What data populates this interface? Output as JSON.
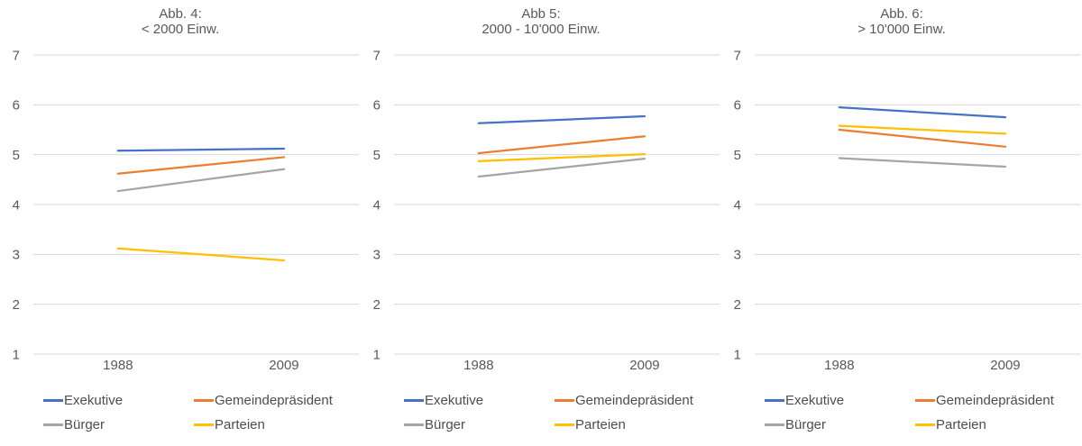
{
  "colors": {
    "grid": "#d9d9d9",
    "axis_text": "#595959",
    "title_text": "#595959",
    "legend_text": "#4d4d4d",
    "series_blue": "#4472c4",
    "series_orange": "#ed7d31",
    "series_gray": "#a5a5a5",
    "series_yellow": "#ffc000"
  },
  "chart_data": [
    {
      "type": "line",
      "title_line1": "Abb. 4:",
      "title_line2": "< 2000 Einw.",
      "categories": [
        "1988",
        "2009"
      ],
      "series": [
        {
          "name": "Exekutive",
          "color": "#4472c4",
          "values": [
            5.08,
            5.12
          ]
        },
        {
          "name": "Gemeindepräsident",
          "color": "#ed7d31",
          "values": [
            4.62,
            4.95
          ]
        },
        {
          "name": "Bürger",
          "color": "#a5a5a5",
          "values": [
            4.27,
            4.71
          ]
        },
        {
          "name": "Parteien",
          "color": "#ffc000",
          "values": [
            3.12,
            2.88
          ]
        }
      ],
      "ylim": [
        1,
        7
      ],
      "yticks": [
        1,
        2,
        3,
        4,
        5,
        6,
        7
      ],
      "grid": true,
      "legend_position": "bottom"
    },
    {
      "type": "line",
      "title_line1": "Abb 5:",
      "title_line2": "2000 - 10'000 Einw.",
      "categories": [
        "1988",
        "2009"
      ],
      "series": [
        {
          "name": "Exekutive",
          "color": "#4472c4",
          "values": [
            5.63,
            5.77
          ]
        },
        {
          "name": "Gemeindepräsident",
          "color": "#ed7d31",
          "values": [
            5.03,
            5.37
          ]
        },
        {
          "name": "Bürger",
          "color": "#a5a5a5",
          "values": [
            4.56,
            4.92
          ]
        },
        {
          "name": "Parteien",
          "color": "#ffc000",
          "values": [
            4.87,
            5.01
          ]
        }
      ],
      "ylim": [
        1,
        7
      ],
      "yticks": [
        1,
        2,
        3,
        4,
        5,
        6,
        7
      ],
      "grid": true,
      "legend_position": "bottom"
    },
    {
      "type": "line",
      "title_line1": "Abb. 6:",
      "title_line2": "> 10'000 Einw.",
      "categories": [
        "1988",
        "2009"
      ],
      "series": [
        {
          "name": "Exekutive",
          "color": "#4472c4",
          "values": [
            5.95,
            5.75
          ]
        },
        {
          "name": "Gemeindepräsident",
          "color": "#ed7d31",
          "values": [
            5.5,
            5.16
          ]
        },
        {
          "name": "Bürger",
          "color": "#a5a5a5",
          "values": [
            4.93,
            4.76
          ]
        },
        {
          "name": "Parteien",
          "color": "#ffc000",
          "values": [
            5.58,
            5.42
          ]
        }
      ],
      "ylim": [
        1,
        7
      ],
      "yticks": [
        1,
        2,
        3,
        4,
        5,
        6,
        7
      ],
      "grid": true,
      "legend_position": "bottom"
    }
  ]
}
